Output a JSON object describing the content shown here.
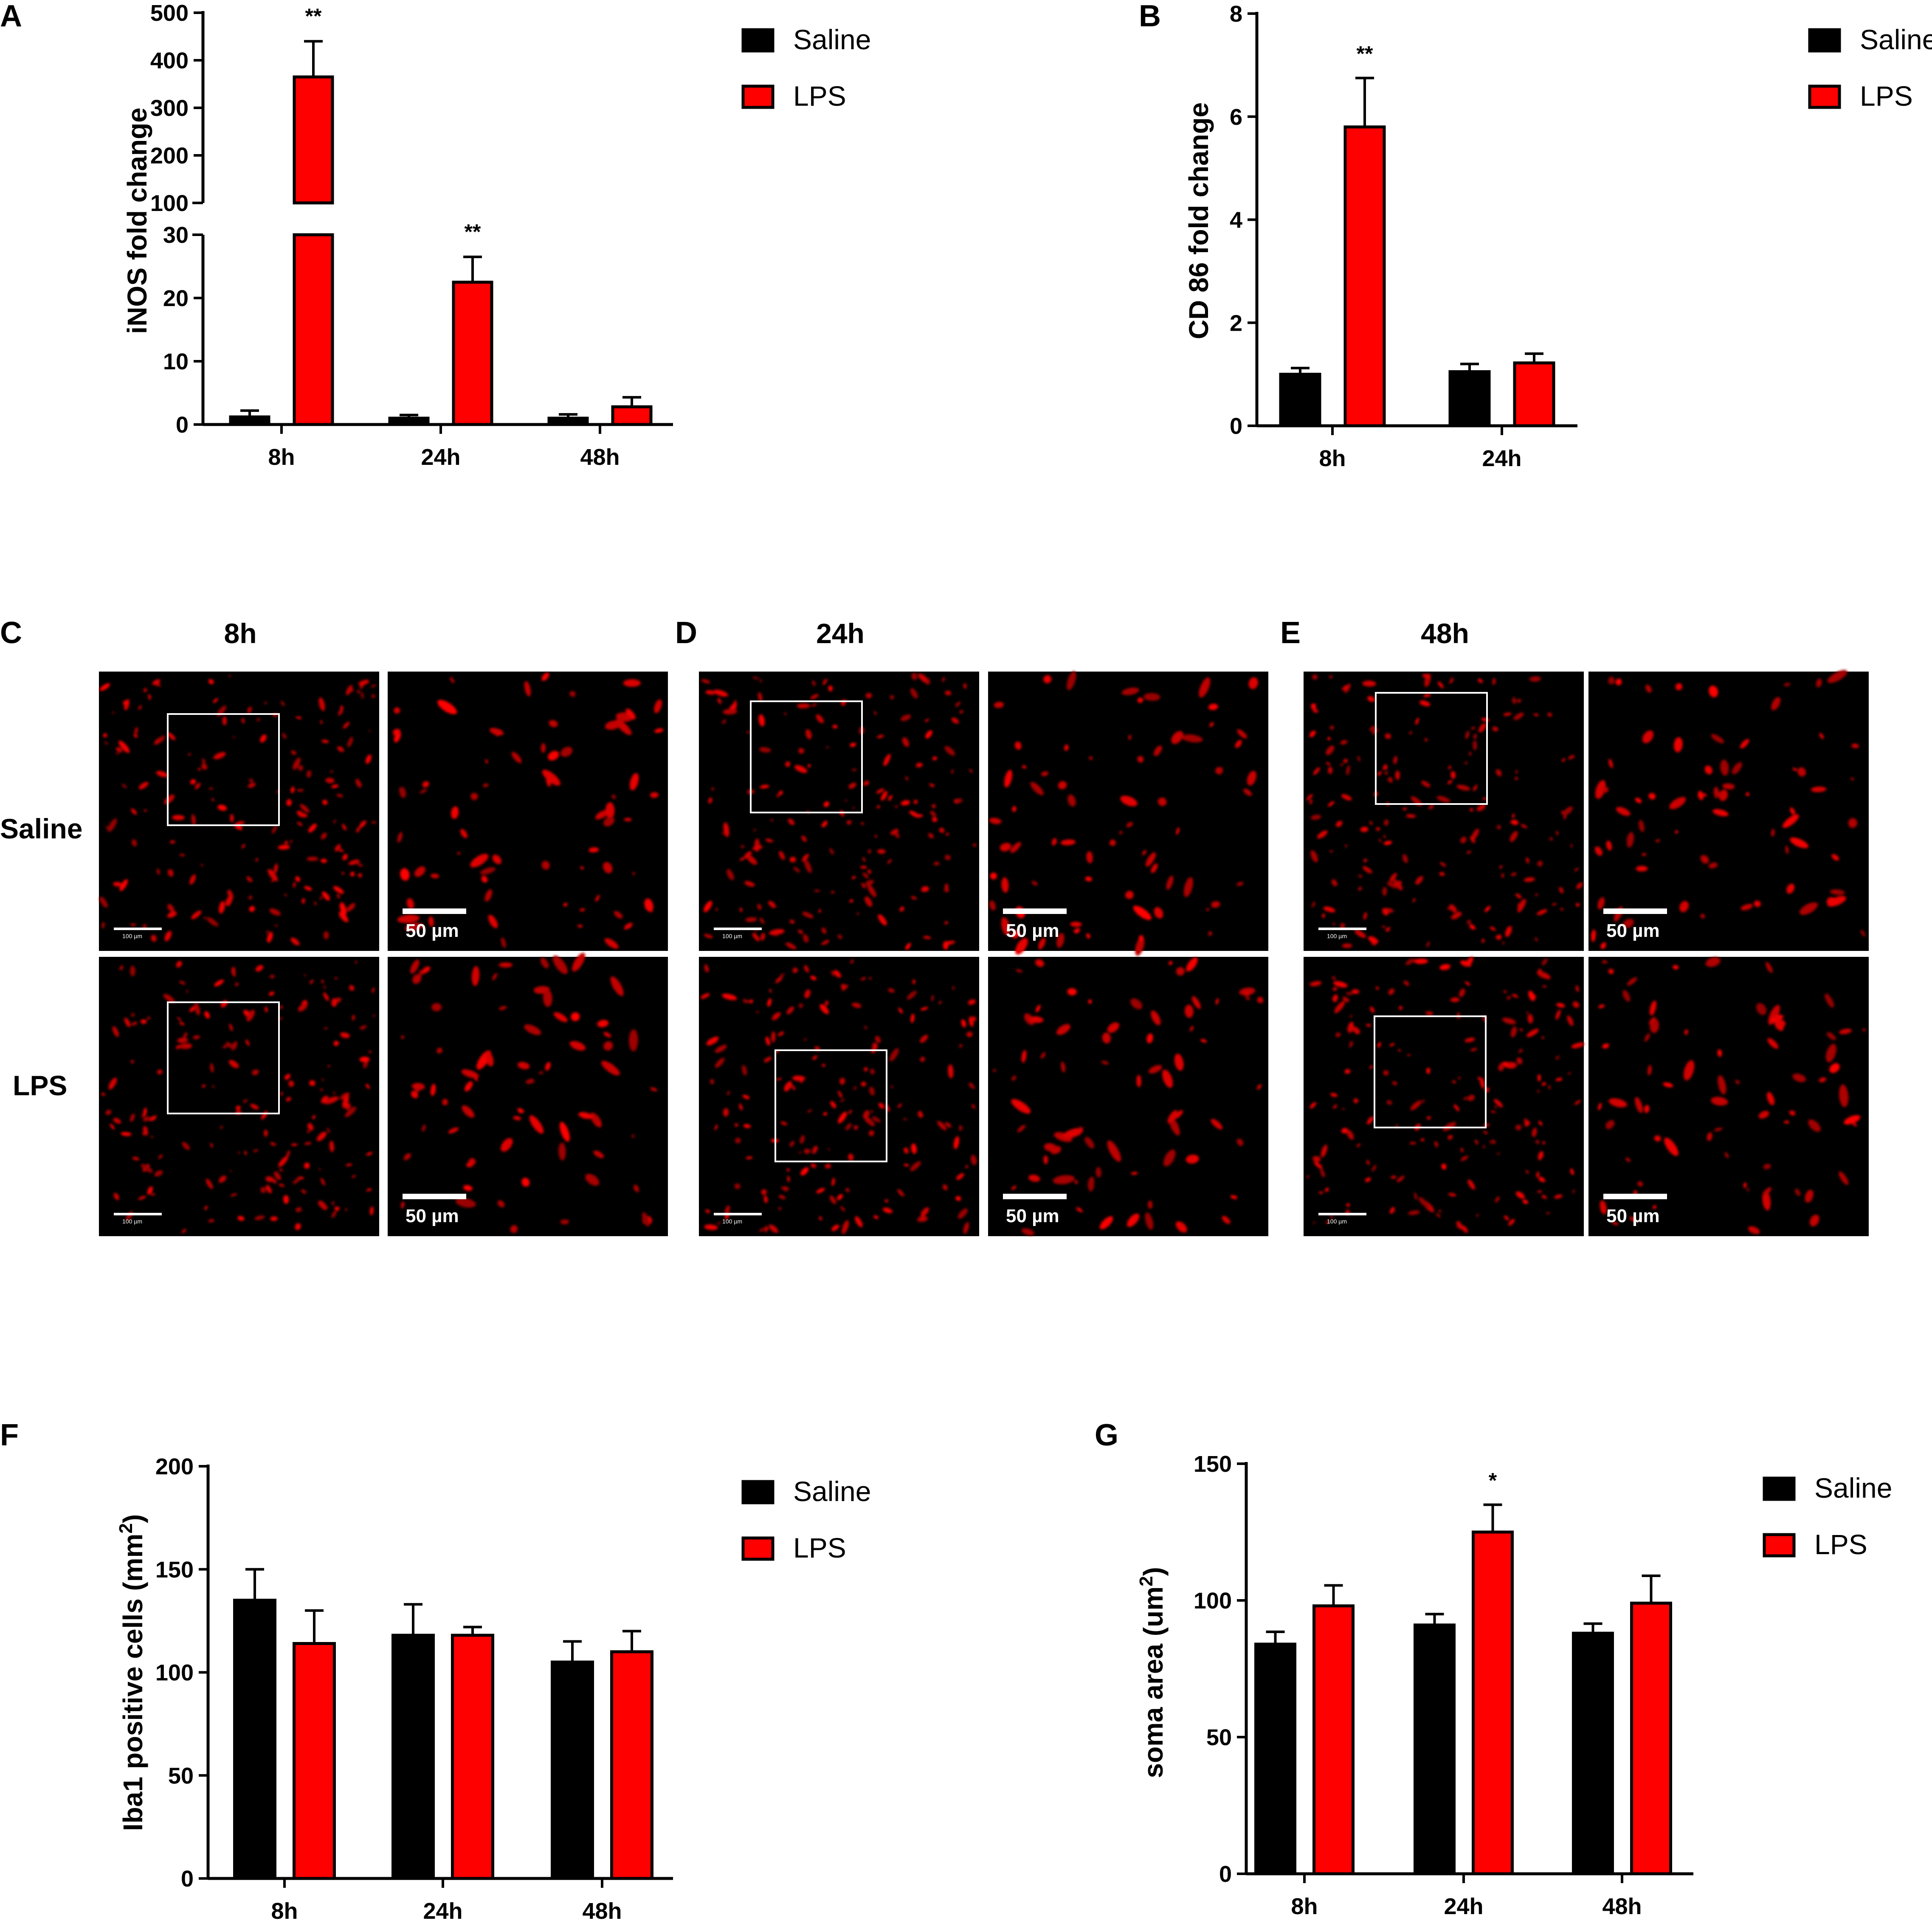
{
  "chart_data": [
    {
      "panel": "A",
      "type": "bar",
      "ylabel": "iNOS fold change",
      "categories": [
        "8h",
        "24h",
        "48h"
      ],
      "series": [
        {
          "name": "Saline",
          "color": "#000000",
          "values": [
            1.2,
            1.0,
            1.0
          ],
          "errors": [
            1.0,
            0.5,
            0.6
          ]
        },
        {
          "name": "LPS",
          "color": "#ff0000",
          "values": [
            365,
            22.5,
            2.8
          ],
          "errors": [
            75,
            4.0,
            1.5
          ]
        }
      ],
      "significance": [
        "**",
        "**",
        ""
      ],
      "y_axis_break": true,
      "yticks_lower": [
        "0",
        "10",
        "20",
        "30"
      ],
      "yticks_upper": [
        "100",
        "200",
        "300",
        "400",
        "500"
      ]
    },
    {
      "panel": "B",
      "type": "bar",
      "ylabel": "CD 86 fold change",
      "categories": [
        "8h",
        "24h"
      ],
      "series": [
        {
          "name": "Saline",
          "color": "#000000",
          "values": [
            1.0,
            1.05
          ],
          "errors": [
            0.12,
            0.15
          ]
        },
        {
          "name": "LPS",
          "color": "#ff0000",
          "values": [
            5.8,
            1.22
          ],
          "errors": [
            0.95,
            0.18
          ]
        }
      ],
      "significance": [
        "**",
        ""
      ],
      "ylim": [
        0,
        8
      ],
      "yticks": [
        "0",
        "2",
        "4",
        "6",
        "8"
      ]
    },
    {
      "panel": "F",
      "type": "bar",
      "ylabel": "Iba1 positive cells (mm",
      "ylabel_sup": "2",
      "ylabel_end": ")",
      "categories": [
        "8h",
        "24h",
        "48h"
      ],
      "series": [
        {
          "name": "Saline",
          "color": "#000000",
          "values": [
            135,
            118,
            105
          ],
          "errors": [
            15,
            15,
            10
          ]
        },
        {
          "name": "LPS",
          "color": "#ff0000",
          "values": [
            114,
            118,
            110
          ],
          "errors": [
            16,
            4,
            10
          ]
        }
      ],
      "significance": [
        "",
        "",
        ""
      ],
      "ylim": [
        0,
        200
      ],
      "yticks": [
        "0",
        "50",
        "100",
        "150",
        "200"
      ]
    },
    {
      "panel": "G",
      "type": "bar",
      "ylabel": "soma area (um",
      "ylabel_sup": "2",
      "ylabel_end": ")",
      "categories": [
        "8h",
        "24h",
        "48h"
      ],
      "series": [
        {
          "name": "Saline",
          "color": "#000000",
          "values": [
            84,
            91,
            88
          ],
          "errors": [
            4.5,
            4.0,
            3.5
          ]
        },
        {
          "name": "LPS",
          "color": "#ff0000",
          "values": [
            98,
            125,
            99
          ],
          "errors": [
            7.5,
            10,
            10
          ]
        }
      ],
      "significance": [
        "",
        "*",
        ""
      ],
      "ylim": [
        0,
        150
      ],
      "yticks": [
        "0",
        "50",
        "100",
        "150"
      ]
    }
  ],
  "panel_letters": {
    "A": "A",
    "B": "B",
    "C": "C",
    "D": "D",
    "E": "E",
    "F": "F",
    "G": "G"
  },
  "micrographs": {
    "columns": [
      {
        "letter": "C",
        "title": "8h"
      },
      {
        "letter": "D",
        "title": "24h"
      },
      {
        "letter": "E",
        "title": "48h"
      }
    ],
    "rows": [
      "Saline",
      "LPS"
    ],
    "scale_overview": "100 µm",
    "scale_zoom": "50 µm"
  },
  "legend": {
    "saline": "Saline",
    "lps": "LPS"
  }
}
